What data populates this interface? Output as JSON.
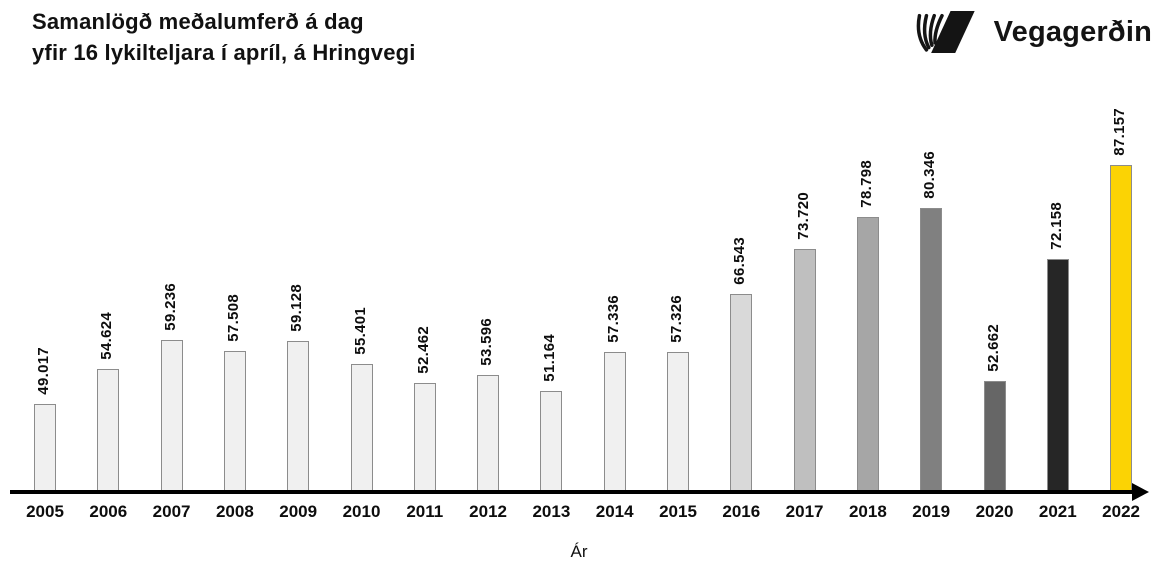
{
  "header": {
    "title_line1": "Samanlögð meðalumferð á dag",
    "title_line2": "yfir 16 lykilteljara í apríl, á Hringvegi"
  },
  "logo": {
    "text": "Vegagerðin",
    "icon": "vegagerdin-striped-v-mark",
    "color": "#141414"
  },
  "chart_data": {
    "type": "bar",
    "title": "Samanlögð meðalumferð á dag yfir 16 lykilteljara í apríl, á Hringvegi",
    "xlabel": "Ár",
    "ylabel": "",
    "categories": [
      "2005",
      "2006",
      "2007",
      "2008",
      "2009",
      "2010",
      "2011",
      "2012",
      "2013",
      "2014",
      "2015",
      "2016",
      "2017",
      "2018",
      "2019",
      "2020",
      "2021",
      "2022"
    ],
    "values": [
      49017,
      54624,
      59236,
      57508,
      59128,
      55401,
      52462,
      53596,
      51164,
      57336,
      57326,
      66543,
      73720,
      78798,
      80346,
      52662,
      72158,
      87157
    ],
    "value_labels": [
      "49.017",
      "54.624",
      "59.236",
      "57.508",
      "59.128",
      "55.401",
      "52.462",
      "53.596",
      "51.164",
      "57.336",
      "57.326",
      "66.543",
      "73.720",
      "78.798",
      "80.346",
      "52.662",
      "72.158",
      "87.157"
    ],
    "bar_colors": [
      "#f0f0f0",
      "#f0f0f0",
      "#f0f0f0",
      "#f0f0f0",
      "#f0f0f0",
      "#f0f0f0",
      "#f0f0f0",
      "#f0f0f0",
      "#f0f0f0",
      "#f0f0f0",
      "#f0f0f0",
      "#d9d9d9",
      "#bfbfbf",
      "#a6a6a6",
      "#808080",
      "#666666",
      "#262626",
      "#fbd304"
    ],
    "bar_border_color": "#8c8c8c",
    "highlight_color": "#fbd304",
    "ylim": [
      35000,
      88000
    ],
    "grid": false,
    "legend": false,
    "value_labels_rotated": true,
    "axis_arrow": true
  }
}
